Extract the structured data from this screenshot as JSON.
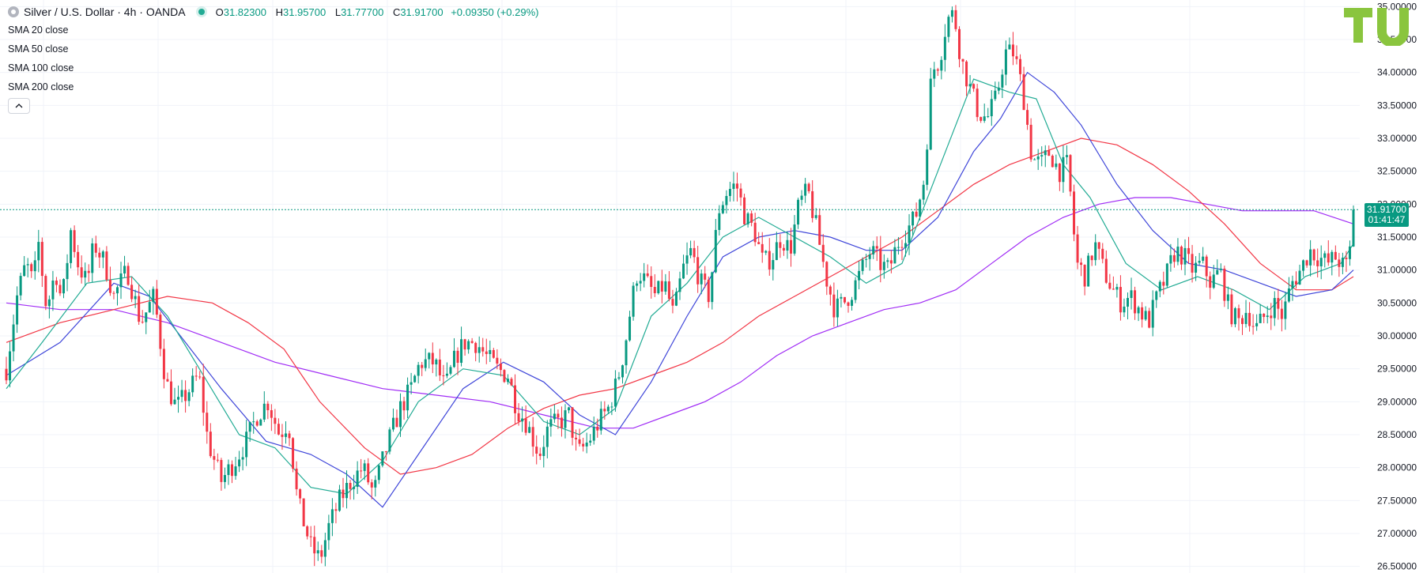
{
  "legend": {
    "symbol": "Silver / U.S. Dollar · 4h · OANDA",
    "ohlc": [
      {
        "k": "O",
        "v": "31.82300"
      },
      {
        "k": "H",
        "v": "31.95700"
      },
      {
        "k": "L",
        "v": "31.77700"
      },
      {
        "k": "C",
        "v": "31.91700"
      }
    ],
    "change": "+0.09350 (+0.29%)",
    "indicators": [
      "SMA 20 close",
      "SMA 50 close",
      "SMA 100 close",
      "SMA 200 close"
    ]
  },
  "price_tag": {
    "price": "31.91700",
    "countdown": "01:41:47"
  },
  "colors": {
    "up": "#089981",
    "down": "#f23645",
    "sma20": "#22ab94",
    "sma50": "#3f46d9",
    "sma100": "#f23645",
    "sma200": "#a02cf5",
    "grid": "#f0f3fa",
    "logo": "#8ac53e"
  },
  "chart_data": {
    "type": "candlestick",
    "title": "Silver / U.S. Dollar · 4h · OANDA",
    "y_axis": {
      "ticks": [
        "26.50000",
        "27.00000",
        "27.50000",
        "28.00000",
        "28.50000",
        "29.00000",
        "29.50000",
        "30.00000",
        "30.50000",
        "31.00000",
        "31.50000",
        "32.00000",
        "32.50000",
        "33.00000",
        "33.50000",
        "34.00000",
        "34.50000",
        "35.00000"
      ],
      "range": [
        26.4,
        35.1
      ]
    },
    "grid": true,
    "last_price": 31.917,
    "price_path": [
      [
        0,
        29.5
      ],
      [
        12,
        30.6
      ],
      [
        22,
        31.1
      ],
      [
        30,
        30.8
      ],
      [
        36,
        31.4
      ],
      [
        45,
        30.4
      ],
      [
        55,
        31.0
      ],
      [
        62,
        30.5
      ],
      [
        72,
        31.6
      ],
      [
        80,
        31.1
      ],
      [
        90,
        30.8
      ],
      [
        98,
        31.4
      ],
      [
        110,
        31.1
      ],
      [
        120,
        30.6
      ],
      [
        135,
        31.0
      ],
      [
        150,
        30.2
      ],
      [
        165,
        30.6
      ],
      [
        178,
        29.3
      ],
      [
        190,
        28.9
      ],
      [
        205,
        29.2
      ],
      [
        215,
        29.4
      ],
      [
        225,
        28.4
      ],
      [
        240,
        27.8
      ],
      [
        255,
        28.1
      ],
      [
        268,
        28.4
      ],
      [
        280,
        28.8
      ],
      [
        292,
        29.0
      ],
      [
        305,
        28.5
      ],
      [
        315,
        28.7
      ],
      [
        325,
        27.5
      ],
      [
        340,
        26.8
      ],
      [
        350,
        26.6
      ],
      [
        360,
        27.1
      ],
      [
        372,
        27.5
      ],
      [
        385,
        27.8
      ],
      [
        398,
        28.0
      ],
      [
        410,
        27.6
      ],
      [
        422,
        28.2
      ],
      [
        432,
        28.6
      ],
      [
        440,
        28.9
      ],
      [
        452,
        29.2
      ],
      [
        462,
        29.6
      ],
      [
        478,
        29.6
      ],
      [
        490,
        29.2
      ],
      [
        502,
        29.7
      ],
      [
        512,
        29.9
      ],
      [
        525,
        29.9
      ],
      [
        535,
        29.7
      ],
      [
        548,
        29.5
      ],
      [
        560,
        29.4
      ],
      [
        570,
        28.9
      ],
      [
        580,
        28.7
      ],
      [
        595,
        28.2
      ],
      [
        605,
        28.6
      ],
      [
        618,
        28.7
      ],
      [
        628,
        28.8
      ],
      [
        638,
        28.2
      ],
      [
        650,
        28.4
      ],
      [
        662,
        28.7
      ],
      [
        672,
        28.9
      ],
      [
        682,
        29.3
      ],
      [
        690,
        29.8
      ],
      [
        698,
        30.5
      ],
      [
        705,
        31.0
      ],
      [
        715,
        30.8
      ],
      [
        725,
        30.6
      ],
      [
        735,
        30.8
      ],
      [
        745,
        30.3
      ],
      [
        755,
        31.0
      ],
      [
        765,
        31.3
      ],
      [
        775,
        30.8
      ],
      [
        785,
        30.6
      ],
      [
        795,
        31.9
      ],
      [
        805,
        32.2
      ],
      [
        815,
        32.3
      ],
      [
        825,
        31.8
      ],
      [
        835,
        31.6
      ],
      [
        845,
        31.1
      ],
      [
        855,
        31.2
      ],
      [
        865,
        31.5
      ],
      [
        875,
        31.3
      ],
      [
        885,
        32.0
      ],
      [
        895,
        32.2
      ],
      [
        905,
        31.6
      ],
      [
        915,
        30.9
      ],
      [
        925,
        30.4
      ],
      [
        935,
        30.5
      ],
      [
        945,
        30.7
      ],
      [
        955,
        31.0
      ],
      [
        965,
        31.3
      ],
      [
        975,
        31.1
      ],
      [
        985,
        31.0
      ],
      [
        995,
        31.4
      ],
      [
        1005,
        31.6
      ],
      [
        1015,
        31.8
      ],
      [
        1025,
        32.4
      ],
      [
        1033,
        34.0
      ],
      [
        1042,
        34.2
      ],
      [
        1050,
        34.8
      ],
      [
        1058,
        34.9
      ],
      [
        1066,
        34.2
      ],
      [
        1075,
        33.8
      ],
      [
        1085,
        33.4
      ],
      [
        1095,
        33.3
      ],
      [
        1105,
        33.6
      ],
      [
        1115,
        34.3
      ],
      [
        1125,
        34.3
      ],
      [
        1135,
        33.7
      ],
      [
        1145,
        32.7
      ],
      [
        1155,
        32.6
      ],
      [
        1165,
        32.8
      ],
      [
        1175,
        32.5
      ],
      [
        1185,
        32.6
      ],
      [
        1195,
        31.1
      ],
      [
        1205,
        30.9
      ],
      [
        1215,
        31.4
      ],
      [
        1225,
        31.0
      ],
      [
        1235,
        30.7
      ],
      [
        1245,
        30.5
      ],
      [
        1255,
        30.6
      ],
      [
        1265,
        30.4
      ],
      [
        1275,
        30.2
      ],
      [
        1285,
        30.6
      ],
      [
        1295,
        30.9
      ],
      [
        1305,
        31.3
      ],
      [
        1315,
        31.2
      ],
      [
        1325,
        31.0
      ],
      [
        1335,
        31.1
      ],
      [
        1345,
        30.8
      ],
      [
        1355,
        31.0
      ],
      [
        1365,
        30.4
      ],
      [
        1375,
        30.2
      ],
      [
        1385,
        30.4
      ],
      [
        1395,
        30.1
      ],
      [
        1405,
        30.3
      ],
      [
        1415,
        30.5
      ],
      [
        1425,
        30.3
      ],
      [
        1435,
        30.8
      ],
      [
        1445,
        31.0
      ],
      [
        1455,
        31.3
      ],
      [
        1465,
        31.2
      ],
      [
        1475,
        31.1
      ],
      [
        1485,
        31.2
      ],
      [
        1495,
        31.0
      ],
      [
        1500,
        31.3
      ],
      [
        1504,
        31.92
      ]
    ],
    "sma_path_note": "",
    "sma20": [
      [
        0,
        29.2
      ],
      [
        40,
        29.9
      ],
      [
        90,
        30.8
      ],
      [
        140,
        30.9
      ],
      [
        180,
        30.3
      ],
      [
        220,
        29.4
      ],
      [
        260,
        28.5
      ],
      [
        300,
        28.3
      ],
      [
        340,
        27.7
      ],
      [
        380,
        27.6
      ],
      [
        420,
        28.1
      ],
      [
        460,
        29.0
      ],
      [
        510,
        29.5
      ],
      [
        555,
        29.4
      ],
      [
        600,
        28.7
      ],
      [
        640,
        28.5
      ],
      [
        680,
        28.9
      ],
      [
        720,
        30.3
      ],
      [
        760,
        30.8
      ],
      [
        800,
        31.5
      ],
      [
        840,
        31.8
      ],
      [
        880,
        31.5
      ],
      [
        920,
        31.2
      ],
      [
        960,
        30.8
      ],
      [
        1000,
        31.1
      ],
      [
        1040,
        32.5
      ],
      [
        1080,
        33.9
      ],
      [
        1120,
        33.7
      ],
      [
        1150,
        33.6
      ],
      [
        1180,
        32.6
      ],
      [
        1210,
        32.1
      ],
      [
        1250,
        31.1
      ],
      [
        1290,
        30.7
      ],
      [
        1330,
        30.9
      ],
      [
        1370,
        30.7
      ],
      [
        1410,
        30.4
      ],
      [
        1450,
        30.9
      ],
      [
        1490,
        31.1
      ],
      [
        1504,
        31.4
      ]
    ],
    "sma50": [
      [
        0,
        29.4
      ],
      [
        60,
        29.9
      ],
      [
        120,
        30.8
      ],
      [
        160,
        30.6
      ],
      [
        200,
        29.9
      ],
      [
        240,
        29.2
      ],
      [
        290,
        28.4
      ],
      [
        340,
        28.2
      ],
      [
        380,
        27.9
      ],
      [
        420,
        27.4
      ],
      [
        460,
        28.2
      ],
      [
        510,
        29.2
      ],
      [
        555,
        29.6
      ],
      [
        600,
        29.3
      ],
      [
        640,
        28.8
      ],
      [
        680,
        28.5
      ],
      [
        720,
        29.3
      ],
      [
        760,
        30.3
      ],
      [
        800,
        31.2
      ],
      [
        840,
        31.5
      ],
      [
        880,
        31.6
      ],
      [
        920,
        31.5
      ],
      [
        960,
        31.3
      ],
      [
        1000,
        31.3
      ],
      [
        1040,
        31.8
      ],
      [
        1080,
        32.8
      ],
      [
        1110,
        33.3
      ],
      [
        1140,
        34.0
      ],
      [
        1170,
        33.7
      ],
      [
        1200,
        33.2
      ],
      [
        1240,
        32.3
      ],
      [
        1280,
        31.6
      ],
      [
        1320,
        31.1
      ],
      [
        1360,
        31.0
      ],
      [
        1400,
        30.8
      ],
      [
        1440,
        30.6
      ],
      [
        1480,
        30.7
      ],
      [
        1504,
        31.0
      ]
    ],
    "sma100": [
      [
        0,
        29.9
      ],
      [
        60,
        30.2
      ],
      [
        120,
        30.4
      ],
      [
        180,
        30.6
      ],
      [
        230,
        30.5
      ],
      [
        270,
        30.2
      ],
      [
        310,
        29.8
      ],
      [
        350,
        29.0
      ],
      [
        400,
        28.3
      ],
      [
        440,
        27.9
      ],
      [
        480,
        28.0
      ],
      [
        520,
        28.2
      ],
      [
        560,
        28.6
      ],
      [
        600,
        28.9
      ],
      [
        640,
        29.1
      ],
      [
        680,
        29.2
      ],
      [
        720,
        29.4
      ],
      [
        760,
        29.6
      ],
      [
        800,
        29.9
      ],
      [
        840,
        30.3
      ],
      [
        880,
        30.6
      ],
      [
        920,
        30.9
      ],
      [
        960,
        31.2
      ],
      [
        1000,
        31.5
      ],
      [
        1040,
        31.9
      ],
      [
        1080,
        32.3
      ],
      [
        1120,
        32.6
      ],
      [
        1160,
        32.8
      ],
      [
        1200,
        33.0
      ],
      [
        1240,
        32.9
      ],
      [
        1280,
        32.6
      ],
      [
        1320,
        32.2
      ],
      [
        1360,
        31.7
      ],
      [
        1400,
        31.1
      ],
      [
        1440,
        30.7
      ],
      [
        1480,
        30.7
      ],
      [
        1504,
        30.9
      ]
    ],
    "sma200": [
      [
        0,
        30.5
      ],
      [
        60,
        30.4
      ],
      [
        120,
        30.4
      ],
      [
        180,
        30.2
      ],
      [
        240,
        29.9
      ],
      [
        300,
        29.6
      ],
      [
        360,
        29.4
      ],
      [
        420,
        29.2
      ],
      [
        480,
        29.1
      ],
      [
        540,
        29.0
      ],
      [
        600,
        28.8
      ],
      [
        660,
        28.6
      ],
      [
        700,
        28.6
      ],
      [
        740,
        28.8
      ],
      [
        780,
        29.0
      ],
      [
        820,
        29.3
      ],
      [
        860,
        29.7
      ],
      [
        900,
        30.0
      ],
      [
        940,
        30.2
      ],
      [
        980,
        30.4
      ],
      [
        1020,
        30.5
      ],
      [
        1060,
        30.7
      ],
      [
        1100,
        31.1
      ],
      [
        1140,
        31.5
      ],
      [
        1180,
        31.8
      ],
      [
        1220,
        32.0
      ],
      [
        1260,
        32.1
      ],
      [
        1300,
        32.1
      ],
      [
        1340,
        32.0
      ],
      [
        1380,
        31.9
      ],
      [
        1420,
        31.9
      ],
      [
        1460,
        31.9
      ],
      [
        1504,
        31.7
      ]
    ]
  }
}
